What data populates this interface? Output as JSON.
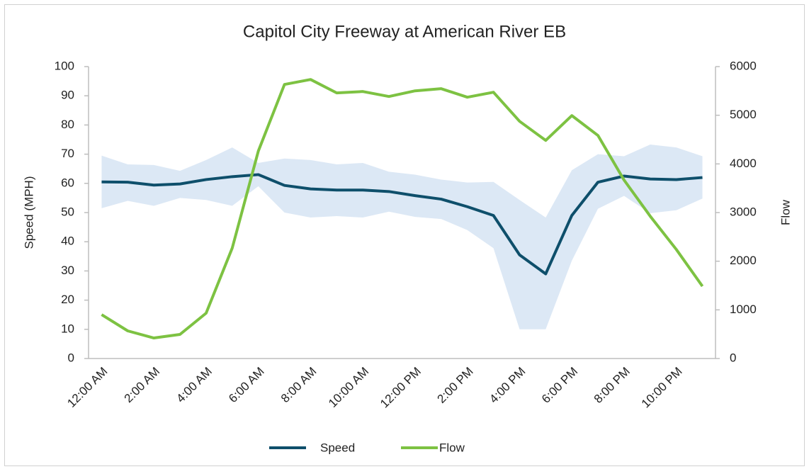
{
  "chart_data": {
    "type": "line",
    "title": "Capitol City Freeway at American River EB",
    "ylabel": "Speed (MPH)",
    "y2label": "Flow",
    "categories": [
      "12:00 AM",
      null,
      "2:00 AM",
      null,
      "4:00 AM",
      null,
      "6:00 AM",
      null,
      "8:00 AM",
      null,
      "10:00 AM",
      null,
      "12:00 PM",
      null,
      "2:00 PM",
      null,
      "4:00 PM",
      null,
      "6:00 PM",
      null,
      "8:00 PM",
      null,
      "10:00 PM",
      null
    ],
    "series": [
      {
        "name": "Speed",
        "color": "#0e4f6b",
        "axis": "y",
        "values": [
          60.5,
          60.4,
          59.4,
          59.8,
          61.3,
          62.3,
          63.0,
          59.3,
          58.1,
          57.7,
          57.7,
          57.2,
          55.8,
          54.6,
          52.0,
          49.0,
          35.5,
          29.0,
          49.0,
          60.4,
          62.5,
          61.5,
          61.3,
          62.0
        ]
      },
      {
        "name": "Flow",
        "color": "#7dc242",
        "axis": "y2",
        "values": [
          902,
          568,
          422,
          495,
          932,
          2270,
          4265,
          5633,
          5735,
          5459,
          5488,
          5386,
          5502,
          5546,
          5371,
          5473,
          4876,
          4483,
          4993,
          4585,
          3668,
          2926,
          2242,
          1485
        ]
      }
    ],
    "range": {
      "color": "#dce8f5",
      "upper": [
        69.5,
        66.5,
        66.3,
        64.3,
        68.0,
        72.3,
        67.0,
        68.5,
        68.0,
        66.5,
        67.0,
        64.0,
        63.0,
        61.3,
        60.3,
        60.5,
        54.3,
        48.3,
        64.5,
        70.0,
        69.3,
        73.3,
        72.3,
        69.3
      ],
      "lower": [
        51.5,
        54.0,
        52.3,
        55.0,
        54.3,
        52.3,
        59.0,
        50.0,
        48.3,
        48.8,
        48.3,
        50.3,
        48.5,
        47.8,
        44.0,
        37.8,
        10.0,
        10.0,
        33.5,
        51.3,
        55.7,
        49.8,
        50.8,
        54.8
      ]
    },
    "ylim": [
      0,
      100
    ],
    "yticks": [
      0,
      10,
      20,
      30,
      40,
      50,
      60,
      70,
      80,
      90,
      100
    ],
    "y2lim": [
      0,
      6000
    ],
    "y2ticks": [
      0,
      1000,
      2000,
      3000,
      4000,
      5000,
      6000
    ],
    "legend": "bottom",
    "grid": false
  }
}
